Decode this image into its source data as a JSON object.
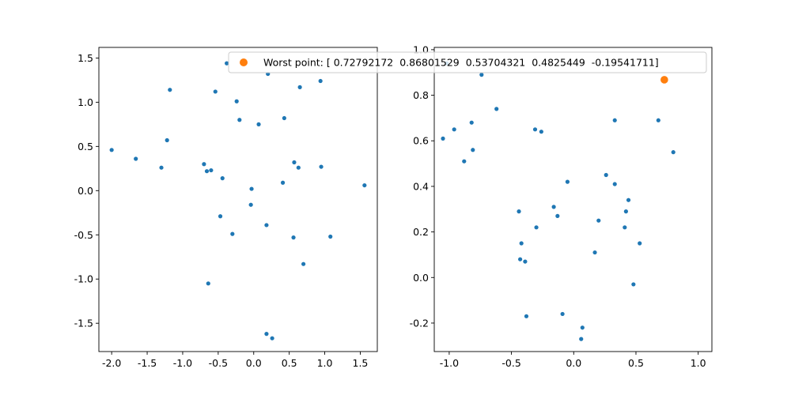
{
  "colors": {
    "points": "#1f77b4",
    "worst": "#ff7f0e",
    "axes": "#000000",
    "legend_border": "#cccccc",
    "background": "#ffffff"
  },
  "legend": {
    "label": "Worst point: [ 0.72792172  0.86801529  0.53704321  0.4825449  -0.19541711]"
  },
  "chart_data": [
    {
      "type": "scatter",
      "title": "",
      "xlabel": "",
      "ylabel": "",
      "xlim": [
        -2.18,
        1.74
      ],
      "ylim": [
        -1.82,
        1.62
      ],
      "xticks": [
        "-2.0",
        "-1.5",
        "-1.0",
        "-0.5",
        "0.0",
        "0.5",
        "1.0",
        "1.5"
      ],
      "xtick_values": [
        -2.0,
        -1.5,
        -1.0,
        -0.5,
        0.0,
        0.5,
        1.0,
        1.5
      ],
      "yticks": [
        "-1.5",
        "-1.0",
        "-0.5",
        "0.0",
        "0.5",
        "1.0",
        "1.5"
      ],
      "ytick_values": [
        -1.5,
        -1.0,
        -0.5,
        0.0,
        0.5,
        1.0,
        1.5
      ],
      "grid": false,
      "points": [
        [
          -2.0,
          0.46
        ],
        [
          -1.66,
          0.36
        ],
        [
          -1.3,
          0.26
        ],
        [
          -1.22,
          0.57
        ],
        [
          -1.18,
          1.14
        ],
        [
          -0.7,
          0.3
        ],
        [
          -0.66,
          0.22
        ],
        [
          -0.6,
          0.23
        ],
        [
          -0.44,
          0.14
        ],
        [
          -0.54,
          1.12
        ],
        [
          -0.38,
          1.44
        ],
        [
          -0.24,
          1.01
        ],
        [
          -0.2,
          0.8
        ],
        [
          0.07,
          0.75
        ],
        [
          0.2,
          1.32
        ],
        [
          0.43,
          0.82
        ],
        [
          0.65,
          1.17
        ],
        [
          0.94,
          1.24
        ],
        [
          0.57,
          0.32
        ],
        [
          0.63,
          0.26
        ],
        [
          0.95,
          0.27
        ],
        [
          1.56,
          0.06
        ],
        [
          0.41,
          0.09
        ],
        [
          -0.03,
          0.02
        ],
        [
          -0.04,
          -0.16
        ],
        [
          -0.47,
          -0.29
        ],
        [
          -0.3,
          -0.49
        ],
        [
          0.18,
          -0.39
        ],
        [
          0.56,
          -0.53
        ],
        [
          1.08,
          -0.52
        ],
        [
          0.7,
          -0.83
        ],
        [
          -0.64,
          -1.05
        ],
        [
          0.18,
          -1.62
        ],
        [
          0.26,
          -1.67
        ]
      ]
    },
    {
      "type": "scatter",
      "title": "",
      "xlabel": "",
      "ylabel": "",
      "xlim": [
        -1.12,
        1.11
      ],
      "ylim": [
        -0.325,
        1.01
      ],
      "xticks": [
        "-1.0",
        "-0.5",
        "0.0",
        "0.5",
        "1.0"
      ],
      "xtick_values": [
        -1.0,
        -0.5,
        0.0,
        0.5,
        1.0
      ],
      "yticks": [
        "-0.2",
        "0.0",
        "0.2",
        "0.4",
        "0.6",
        "0.8",
        "1.0"
      ],
      "ytick_values": [
        -0.2,
        0.0,
        0.2,
        0.4,
        0.6,
        0.8,
        1.0
      ],
      "grid": false,
      "points": [
        [
          -1.02,
          0.94
        ],
        [
          -0.74,
          0.89
        ],
        [
          -1.05,
          0.61
        ],
        [
          -0.96,
          0.65
        ],
        [
          -0.82,
          0.68
        ],
        [
          -0.81,
          0.56
        ],
        [
          -0.88,
          0.51
        ],
        [
          -0.62,
          0.74
        ],
        [
          -0.31,
          0.65
        ],
        [
          -0.26,
          0.64
        ],
        [
          0.33,
          0.69
        ],
        [
          0.68,
          0.69
        ],
        [
          0.8,
          0.55
        ],
        [
          0.26,
          0.45
        ],
        [
          0.33,
          0.41
        ],
        [
          -0.05,
          0.42
        ],
        [
          0.44,
          0.34
        ],
        [
          -0.44,
          0.29
        ],
        [
          -0.16,
          0.31
        ],
        [
          -0.13,
          0.27
        ],
        [
          0.42,
          0.29
        ],
        [
          0.2,
          0.25
        ],
        [
          -0.3,
          0.22
        ],
        [
          0.41,
          0.22
        ],
        [
          -0.42,
          0.15
        ],
        [
          0.53,
          0.15
        ],
        [
          0.17,
          0.11
        ],
        [
          -0.43,
          0.08
        ],
        [
          -0.39,
          0.07
        ],
        [
          0.48,
          -0.03
        ],
        [
          -0.38,
          -0.17
        ],
        [
          -0.09,
          -0.16
        ],
        [
          0.07,
          -0.22
        ],
        [
          0.06,
          -0.27
        ]
      ],
      "highlight": {
        "name": "Worst point",
        "x": 0.72792172,
        "y": 0.86801529
      }
    }
  ]
}
